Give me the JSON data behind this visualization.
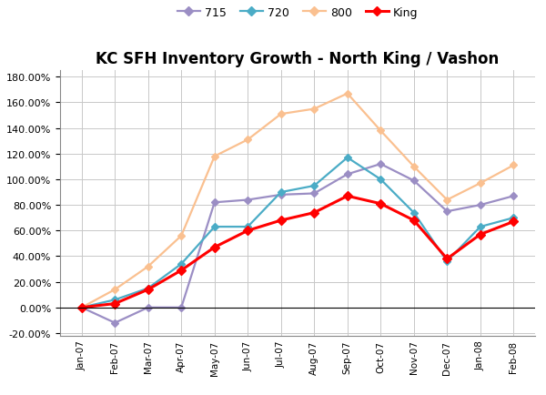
{
  "title": "KC SFH Inventory Growth - North King / Vashon",
  "x_labels": [
    "Jan-07",
    "Feb-07",
    "Mar-07",
    "Apr-07",
    "May-07",
    "Jun-07",
    "Jul-07",
    "Aug-07",
    "Sep-07",
    "Oct-07",
    "Nov-07",
    "Dec-07",
    "Jan-08",
    "Feb-08"
  ],
  "series": {
    "715": {
      "values": [
        0.0,
        -0.12,
        0.0,
        0.0,
        0.82,
        0.84,
        0.88,
        0.89,
        1.04,
        1.12,
        0.99,
        0.75,
        0.8,
        0.87
      ],
      "color": "#9B8EC4",
      "marker": "D",
      "markersize": 4
    },
    "720": {
      "values": [
        0.0,
        0.06,
        0.15,
        0.34,
        0.63,
        0.63,
        0.9,
        0.95,
        1.17,
        1.0,
        0.74,
        0.36,
        0.63,
        0.7
      ],
      "color": "#4BACC6",
      "marker": "D",
      "markersize": 4
    },
    "800": {
      "values": [
        0.0,
        0.14,
        0.32,
        0.56,
        1.18,
        1.31,
        1.51,
        1.55,
        1.67,
        1.38,
        1.1,
        0.84,
        0.97,
        1.11
      ],
      "color": "#FAC090",
      "marker": "D",
      "markersize": 4
    },
    "King": {
      "values": [
        0.0,
        0.03,
        0.14,
        0.29,
        0.47,
        0.6,
        0.68,
        0.74,
        0.87,
        0.81,
        0.68,
        0.38,
        0.57,
        0.67
      ],
      "color": "#FF0000",
      "marker": "D",
      "markersize": 5
    }
  },
  "ylim": [
    -0.22,
    1.85
  ],
  "yticks": [
    -0.2,
    0.0,
    0.2,
    0.4,
    0.6,
    0.8,
    1.0,
    1.2,
    1.4,
    1.6,
    1.8
  ],
  "background_color": "#FFFFFF",
  "grid_color": "#C8C8C8",
  "legend_order": [
    "715",
    "720",
    "800",
    "King"
  ]
}
